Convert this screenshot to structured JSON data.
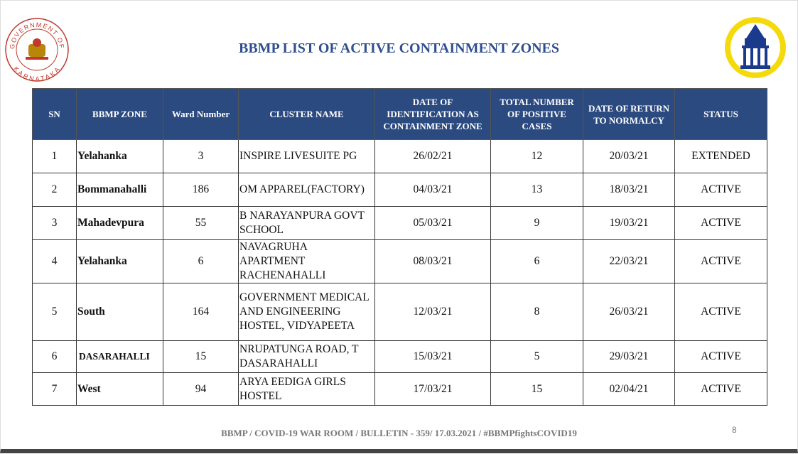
{
  "header": {
    "title": "BBMP LIST OF ACTIVE CONTAINMENT ZONES",
    "seal_top": "GOVERNMENT OF",
    "seal_bottom": "KARNATAKA"
  },
  "table": {
    "columns": [
      "SN",
      "BBMP ZONE",
      "Ward Number",
      "CLUSTER NAME",
      "DATE OF IDENTIFICATION AS CONTAINMENT ZONE",
      "TOTAL NUMBER OF POSITIVE CASES",
      "DATE OF RETURN TO NORMALCY",
      "STATUS"
    ],
    "rows": [
      [
        1,
        "Yelahanka",
        3,
        "INSPIRE LIVESUITE PG",
        "26/02/21",
        12,
        "20/03/21",
        "EXTENDED"
      ],
      [
        2,
        "Bommanahalli",
        186,
        "OM APPAREL(FACTORY)",
        "04/03/21",
        13,
        "18/03/21",
        "ACTIVE"
      ],
      [
        3,
        "Mahadevpura",
        55,
        "B NARAYANPURA GOVT SCHOOL",
        "05/03/21",
        9,
        "19/03/21",
        "ACTIVE"
      ],
      [
        4,
        "Yelahanka",
        6,
        "NAVAGRUHA APARTMENT RACHENAHALLI",
        "08/03/21",
        6,
        "22/03/21",
        "ACTIVE"
      ],
      [
        5,
        "South",
        164,
        "GOVERNMENT MEDICAL AND ENGINEERING HOSTEL, VIDYAPEETA",
        "12/03/21",
        8,
        "26/03/21",
        "ACTIVE"
      ],
      [
        6,
        "DASARAHALLI",
        15,
        "NRUPATUNGA ROAD, T DASARAHALLI",
        "15/03/21",
        5,
        "29/03/21",
        "ACTIVE"
      ],
      [
        7,
        "West",
        94,
        "ARYA EEDIGA GIRLS HOSTEL",
        "17/03/21",
        15,
        "02/04/21",
        "ACTIVE"
      ]
    ]
  },
  "footer": {
    "text": "BBMP / COVID-19 WAR ROOM / BULLETIN - 359/ 17.03.2021 / #BBMPfightsCOVID19",
    "page": "8"
  }
}
